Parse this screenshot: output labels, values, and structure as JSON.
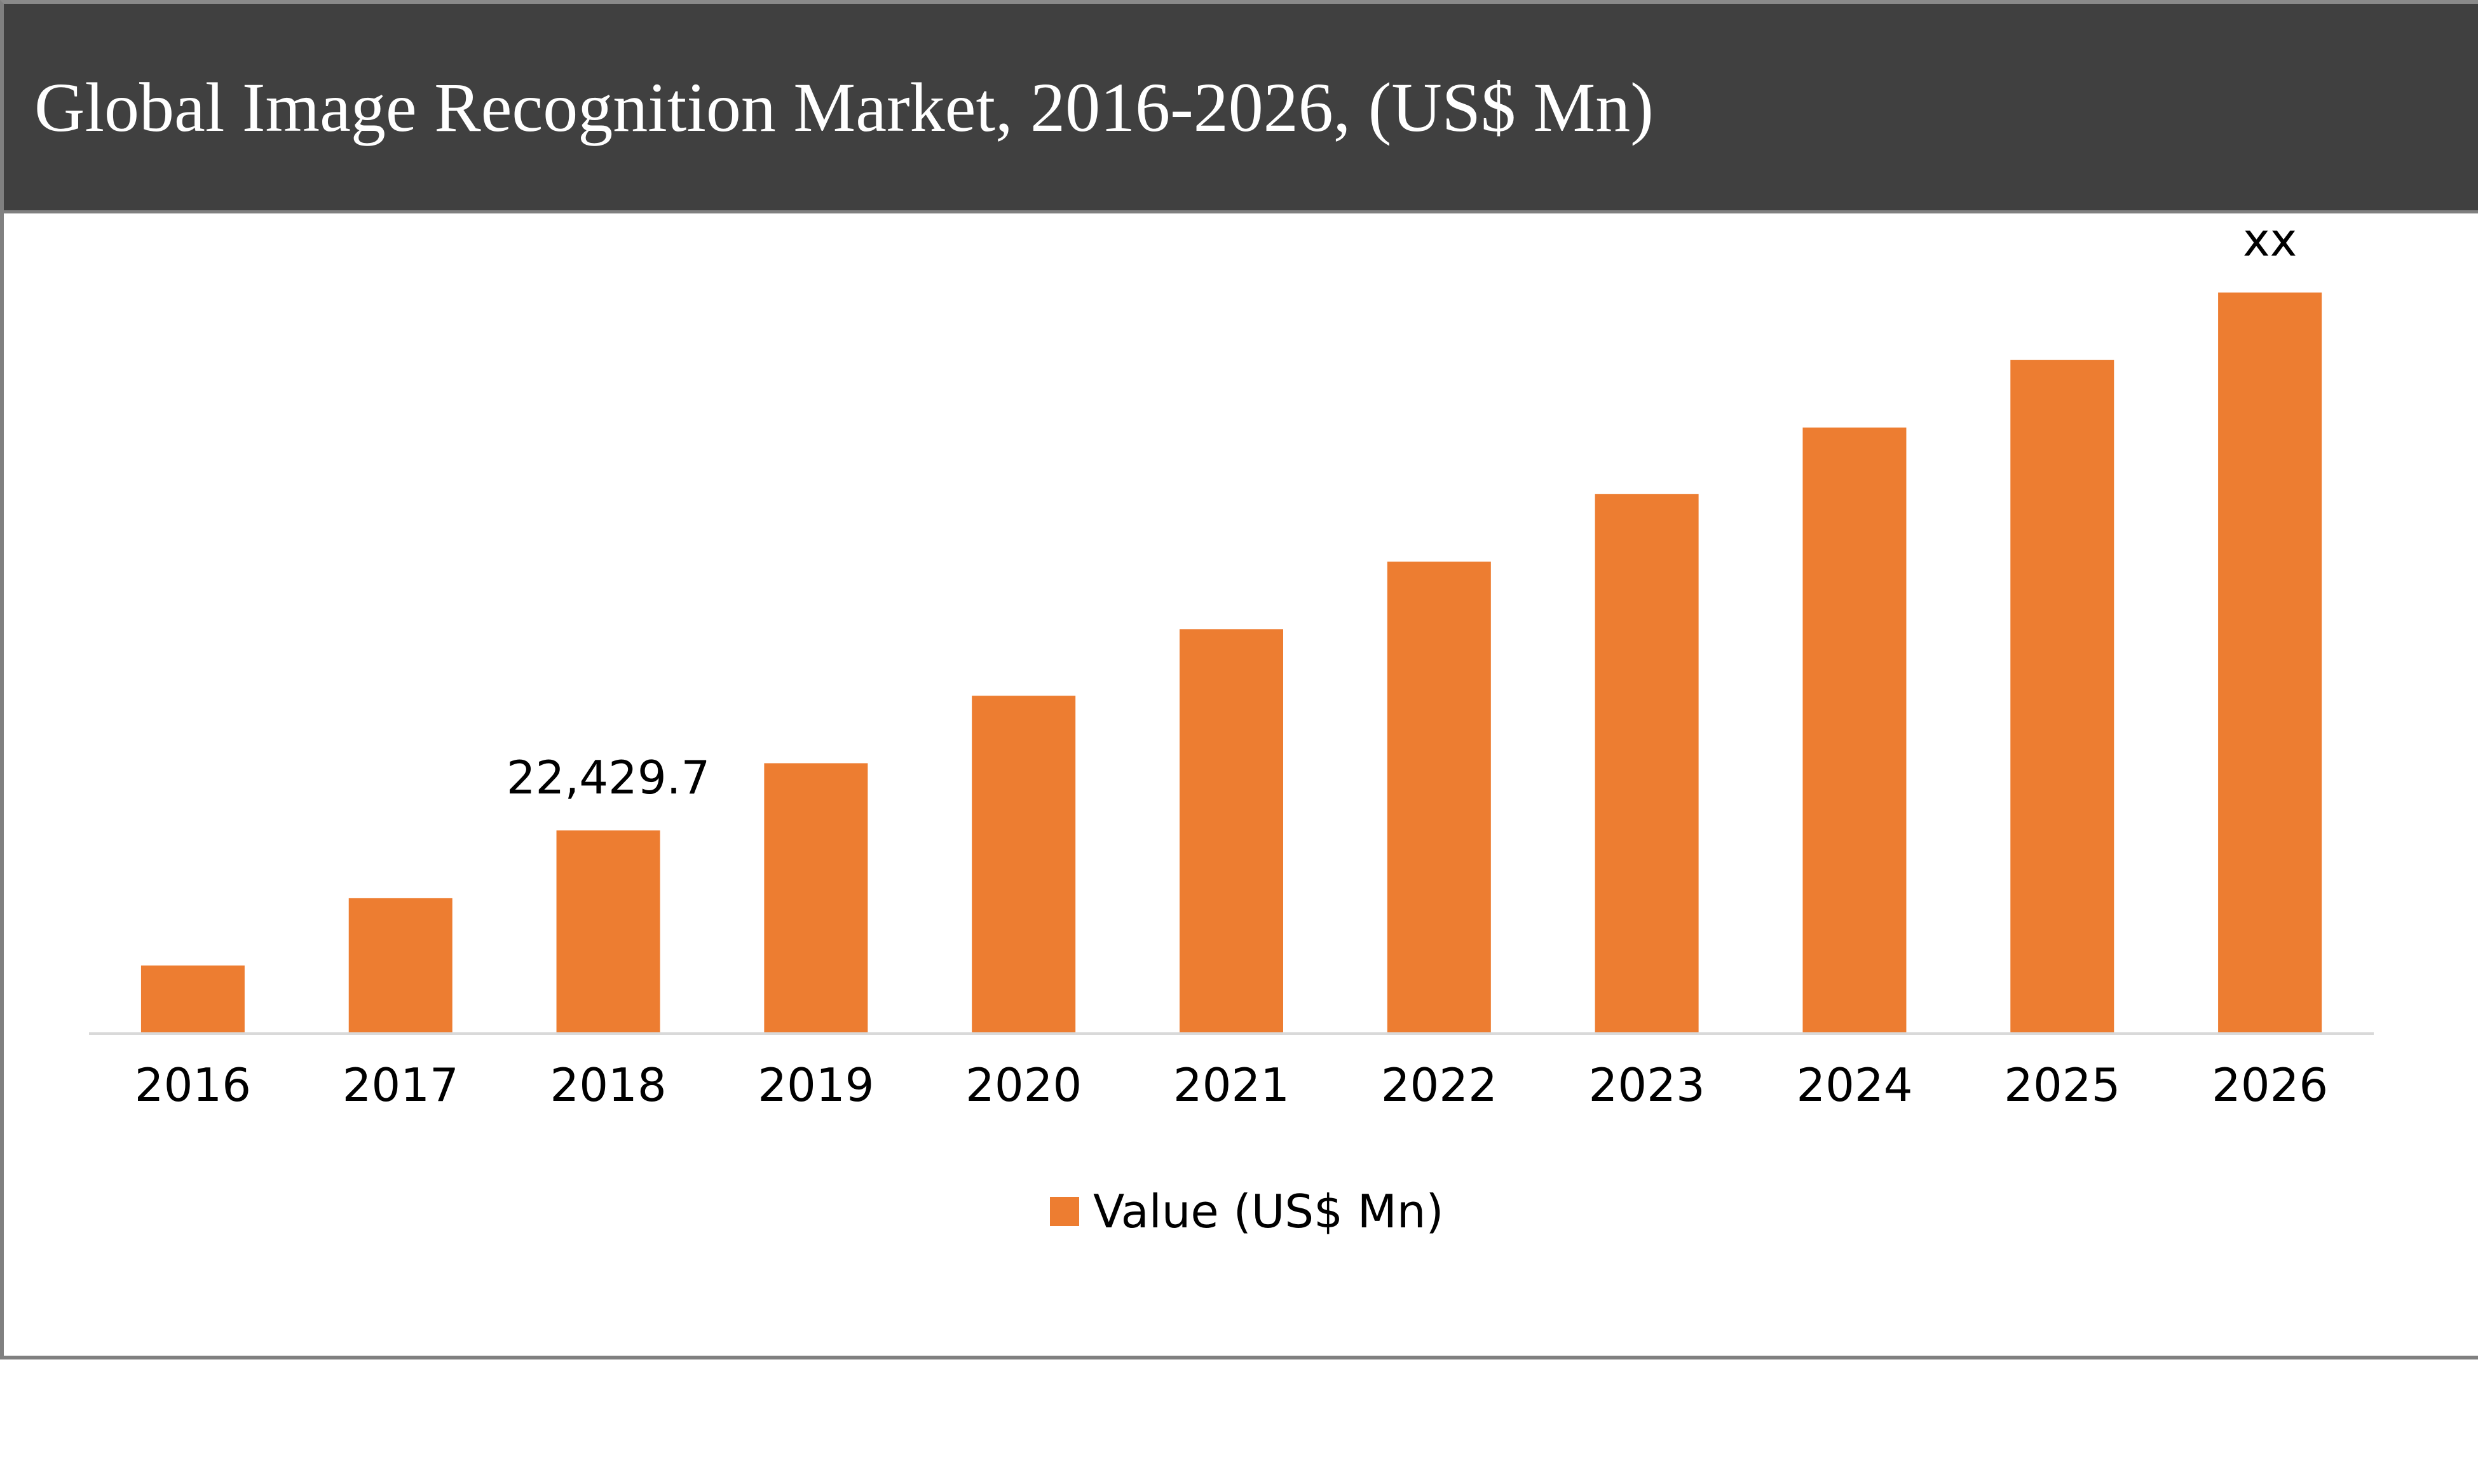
{
  "header": {
    "title": "Global Image Recognition Market, 2016-2026, (US$ Mn)"
  },
  "colors": {
    "header_bg": "#404040",
    "bar": "#ED7D31",
    "axis": "#D9D9D9"
  },
  "chart_data": {
    "type": "bar",
    "title": "Global Image Recognition Market, 2016-2026, (US$ Mn)",
    "xlabel": "",
    "ylabel": "",
    "categories": [
      "2016",
      "2017",
      "2018",
      "2019",
      "2020",
      "2021",
      "2022",
      "2023",
      "2024",
      "2025",
      "2026"
    ],
    "series": [
      {
        "name": "Value (US$ Mn)",
        "values": [
          7430,
          14900,
          22429.7,
          29900,
          37400,
          44800,
          52300,
          59800,
          67200,
          74700,
          82200
        ]
      }
    ],
    "data_labels": [
      {
        "category": "2018",
        "text": "22,429.7"
      },
      {
        "category": "2026",
        "text": "xx"
      }
    ],
    "ylim": [
      0,
      90000
    ],
    "grid": false,
    "legend": {
      "position": "bottom",
      "entries": [
        "Value (US$ Mn)"
      ]
    }
  }
}
